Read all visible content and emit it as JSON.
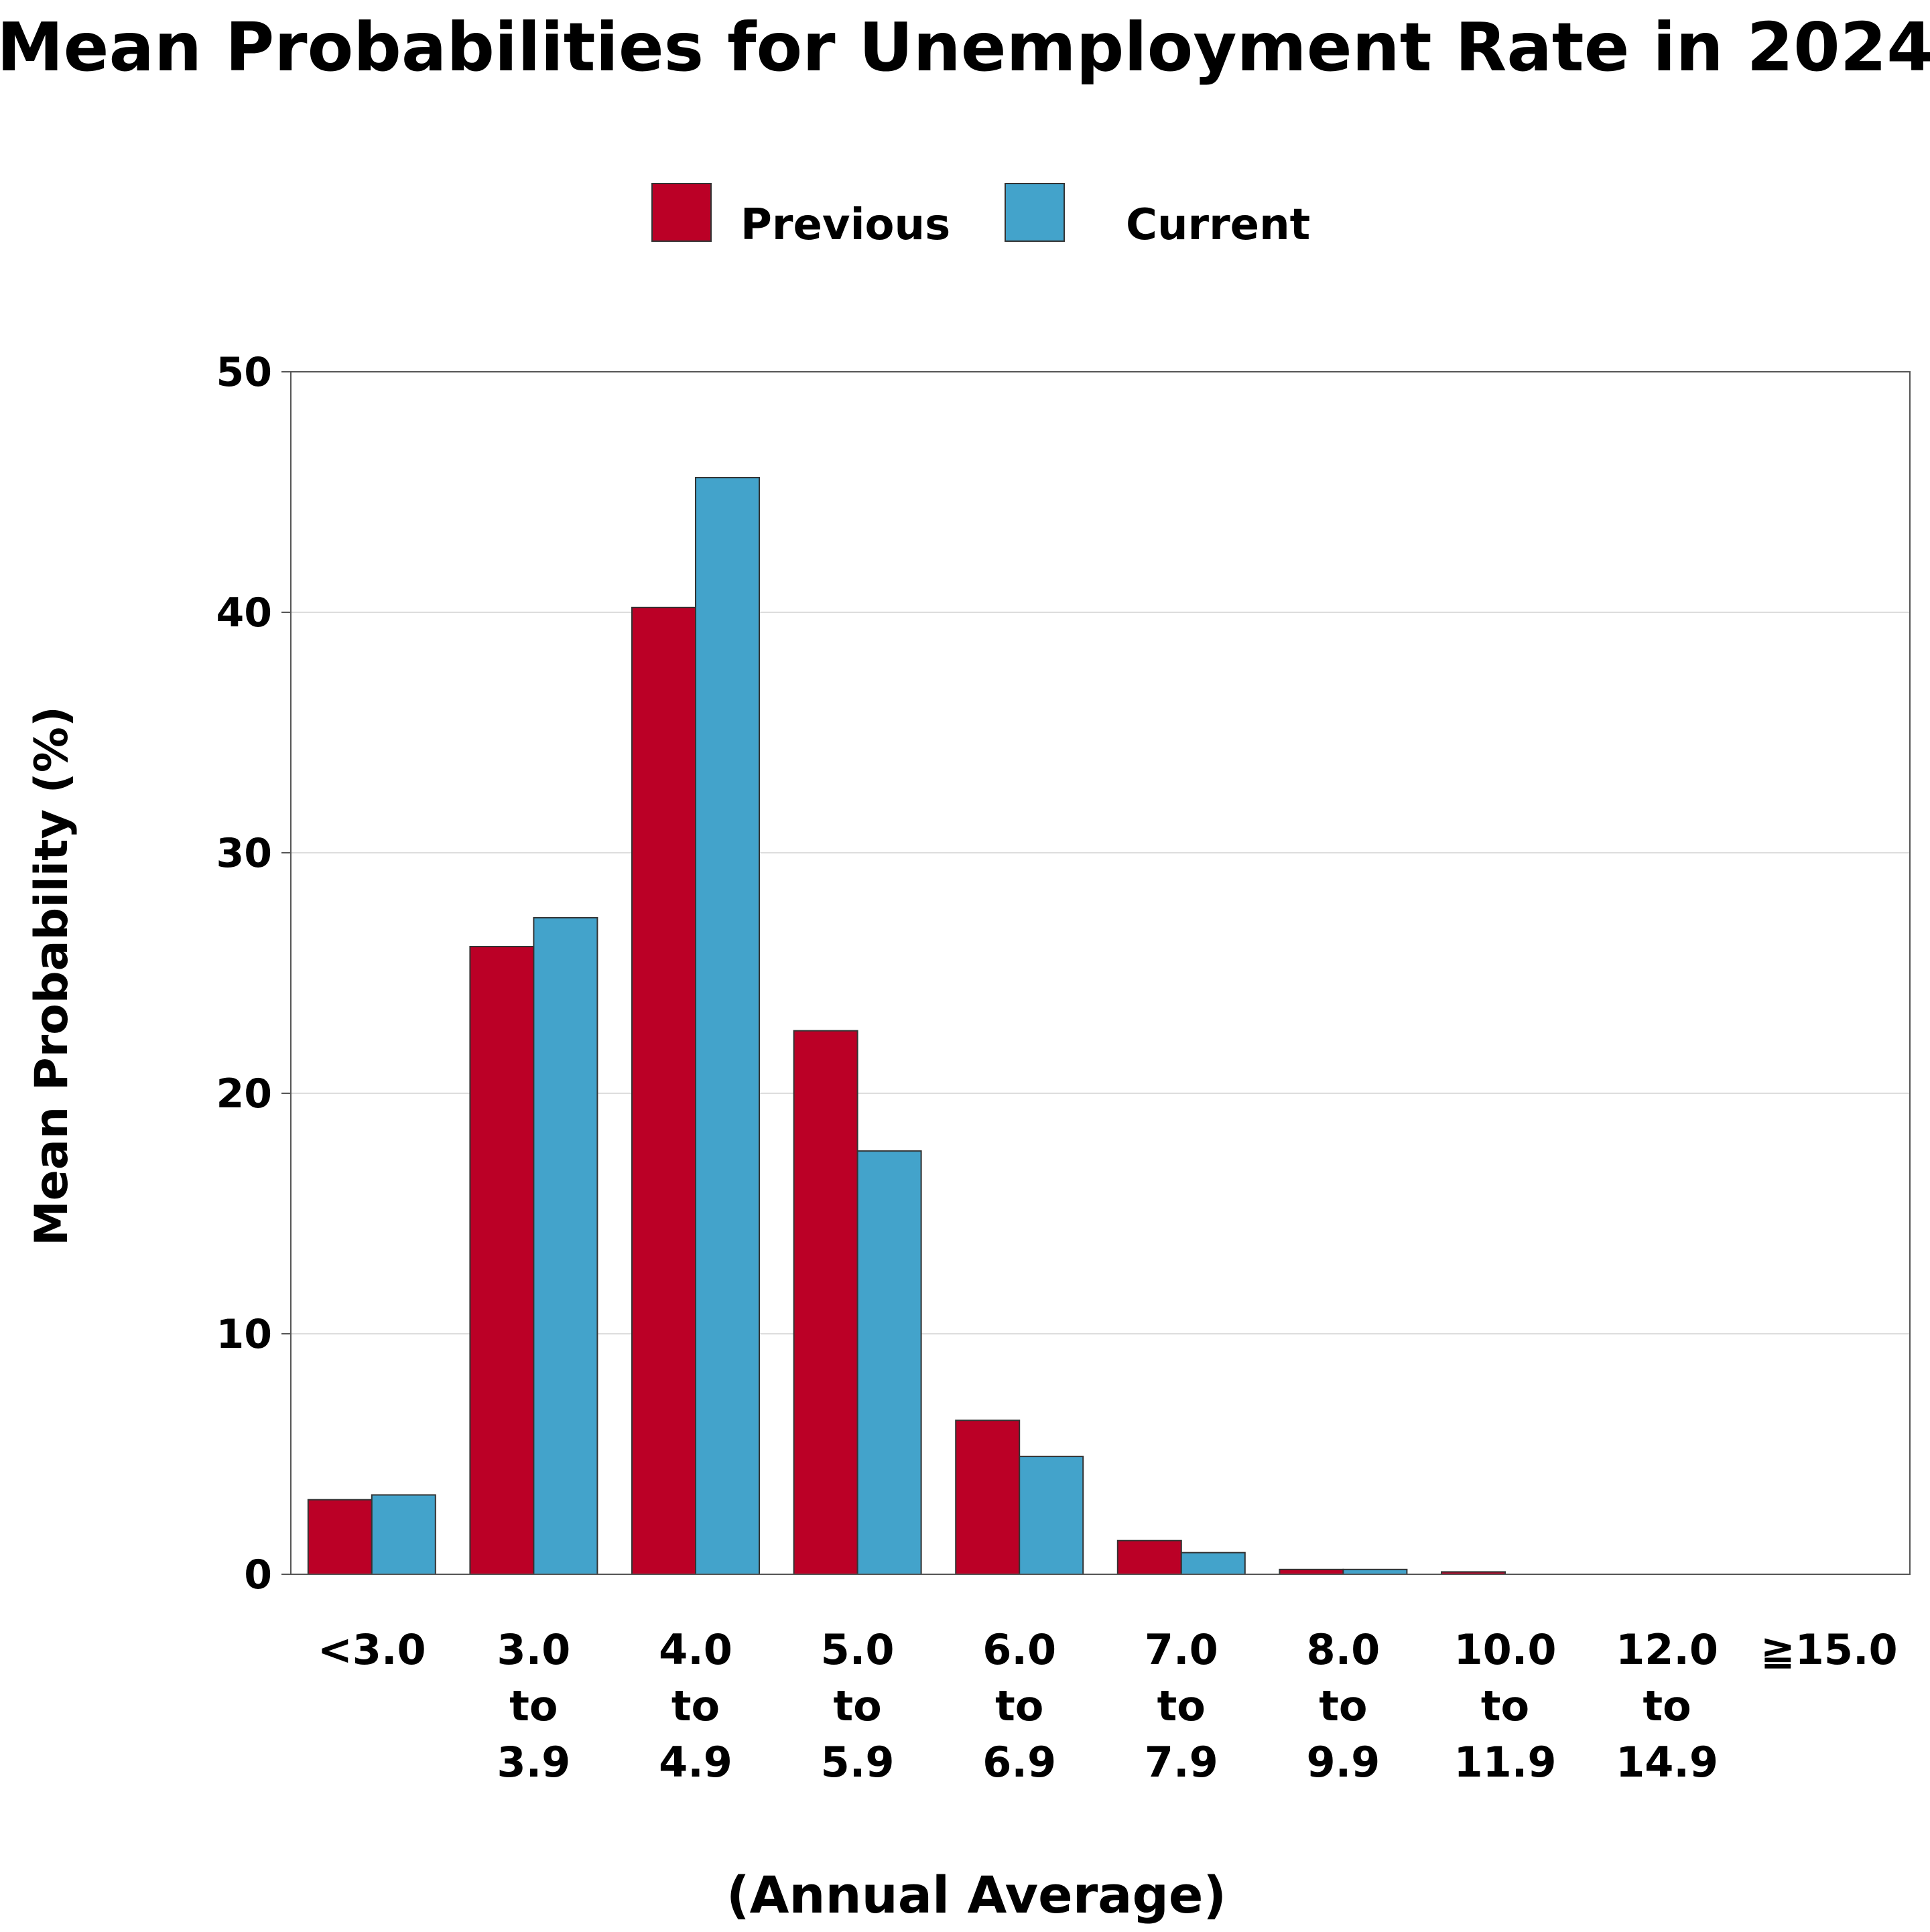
{
  "chart_data": {
    "type": "bar",
    "title": "Mean Probabilities for Unemployment Rate in 2024",
    "xlabel": "(Annual Average)",
    "ylabel": "Mean Probability (%)",
    "ylim": [
      0,
      50
    ],
    "yticks": [
      "0",
      "10",
      "20",
      "30",
      "40",
      "50"
    ],
    "grid": true,
    "legend_position": "top-center",
    "categories": [
      [
        "<3.0"
      ],
      [
        "3.0",
        "to",
        "3.9"
      ],
      [
        "4.0",
        "to",
        "4.9"
      ],
      [
        "5.0",
        "to",
        "5.9"
      ],
      [
        "6.0",
        "to",
        "6.9"
      ],
      [
        "7.0",
        "to",
        "7.9"
      ],
      [
        "8.0",
        "to",
        "9.9"
      ],
      [
        "10.0",
        "to",
        "11.9"
      ],
      [
        "12.0",
        "to",
        "14.9"
      ],
      [
        "≧15.0"
      ]
    ],
    "series": [
      {
        "name": "Previous",
        "color": "#bb0026",
        "values": [
          3.1,
          26.1,
          40.2,
          22.6,
          6.4,
          1.4,
          0.2,
          0.1,
          0.0,
          0.0
        ]
      },
      {
        "name": "Current",
        "color": "#43a3cb",
        "values": [
          3.3,
          27.3,
          45.6,
          17.6,
          4.9,
          0.9,
          0.2,
          0.0,
          0.0,
          0.0
        ]
      }
    ]
  }
}
